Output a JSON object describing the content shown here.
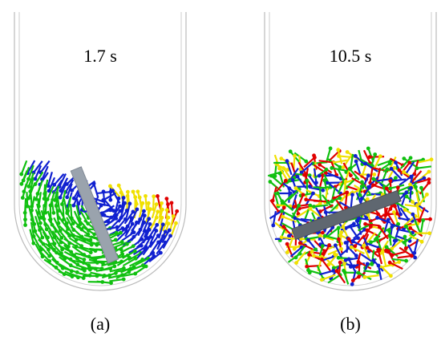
{
  "panels": [
    {
      "time": "1.7 s",
      "label": "(a)"
    },
    {
      "time": "10.5 s",
      "label": "(b)"
    }
  ]
}
